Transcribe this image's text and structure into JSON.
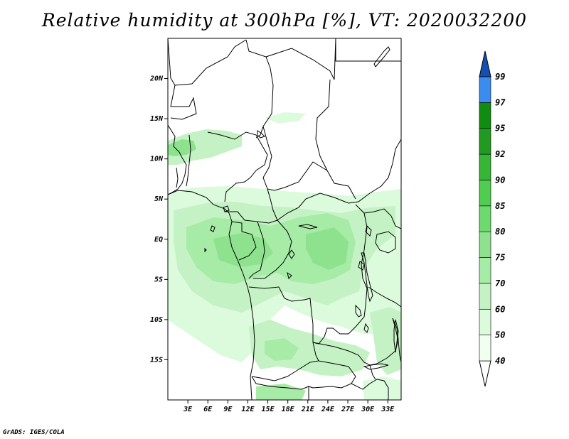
{
  "title": "Relative humidity at 300hPa [%], VT: 2020032200",
  "credit": "GrADS: IGES/COLA",
  "map": {
    "lon_range": [
      0,
      35
    ],
    "lat_range": [
      -20,
      25
    ],
    "lon_ticks": [
      {
        "value": 3,
        "label": "3E"
      },
      {
        "value": 6,
        "label": "6E"
      },
      {
        "value": 9,
        "label": "9E"
      },
      {
        "value": 12,
        "label": "12E"
      },
      {
        "value": 15,
        "label": "15E"
      },
      {
        "value": 18,
        "label": "18E"
      },
      {
        "value": 21,
        "label": "21E"
      },
      {
        "value": 24,
        "label": "24E"
      },
      {
        "value": 27,
        "label": "27E"
      },
      {
        "value": 30,
        "label": "30E"
      },
      {
        "value": 33,
        "label": "33E"
      }
    ],
    "lat_ticks": [
      {
        "value": 20,
        "label": "20N"
      },
      {
        "value": 15,
        "label": "15N"
      },
      {
        "value": 10,
        "label": "10N"
      },
      {
        "value": 5,
        "label": "5N"
      },
      {
        "value": 0,
        "label": "EQ"
      },
      {
        "value": -5,
        "label": "5S"
      },
      {
        "value": -10,
        "label": "10S"
      },
      {
        "value": -15,
        "label": "15S"
      }
    ]
  },
  "colorbar": {
    "levels": [
      {
        "label": "40",
        "color": "#f0fff0"
      },
      {
        "label": "50",
        "color": "#dcfadc"
      },
      {
        "label": "60",
        "color": "#c4f2c4"
      },
      {
        "label": "70",
        "color": "#a6eba6"
      },
      {
        "label": "75",
        "color": "#8ee28e"
      },
      {
        "label": "80",
        "color": "#6ed96e"
      },
      {
        "label": "85",
        "color": "#50cc50"
      },
      {
        "label": "90",
        "color": "#36b536"
      },
      {
        "label": "92",
        "color": "#209a20"
      },
      {
        "label": "95",
        "color": "#108c10"
      },
      {
        "label": "97",
        "color": "#3c8cf0"
      },
      {
        "label": "99",
        "color": "#1e6ed2"
      }
    ],
    "top_color": "#1450b4",
    "bottom_color": "#ffffff"
  }
}
